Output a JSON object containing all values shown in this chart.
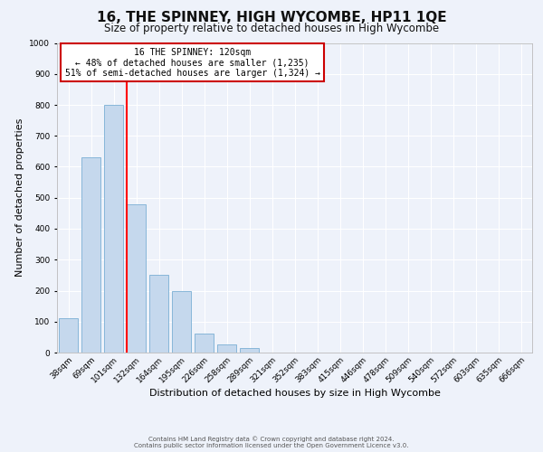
{
  "title": "16, THE SPINNEY, HIGH WYCOMBE, HP11 1QE",
  "subtitle": "Size of property relative to detached houses in High Wycombe",
  "xlabel": "Distribution of detached houses by size in High Wycombe",
  "ylabel": "Number of detached properties",
  "footer_line1": "Contains HM Land Registry data © Crown copyright and database right 2024.",
  "footer_line2": "Contains public sector information licensed under the Open Government Licence v3.0.",
  "bin_labels": [
    "38sqm",
    "69sqm",
    "101sqm",
    "132sqm",
    "164sqm",
    "195sqm",
    "226sqm",
    "258sqm",
    "289sqm",
    "321sqm",
    "352sqm",
    "383sqm",
    "415sqm",
    "446sqm",
    "478sqm",
    "509sqm",
    "540sqm",
    "572sqm",
    "603sqm",
    "635sqm",
    "666sqm"
  ],
  "bin_values": [
    110,
    630,
    800,
    480,
    250,
    200,
    60,
    25,
    15,
    0,
    0,
    0,
    0,
    0,
    0,
    0,
    0,
    0,
    0,
    0,
    0
  ],
  "bar_color": "#c5d8ed",
  "bar_edge_color": "#7aafd4",
  "red_line_x": 2.575,
  "annotation_title": "16 THE SPINNEY: 120sqm",
  "annotation_line1": "← 48% of detached houses are smaller (1,235)",
  "annotation_line2": "51% of semi-detached houses are larger (1,324) →",
  "annotation_box_color": "#ffffff",
  "annotation_border_color": "#cc0000",
  "ylim": [
    0,
    1000
  ],
  "yticks": [
    0,
    100,
    200,
    300,
    400,
    500,
    600,
    700,
    800,
    900,
    1000
  ],
  "background_color": "#eef2fa",
  "grid_color": "#ffffff",
  "title_fontsize": 11,
  "subtitle_fontsize": 8.5,
  "axis_label_fontsize": 8,
  "tick_fontsize": 6.5,
  "footer_fontsize": 5.0
}
